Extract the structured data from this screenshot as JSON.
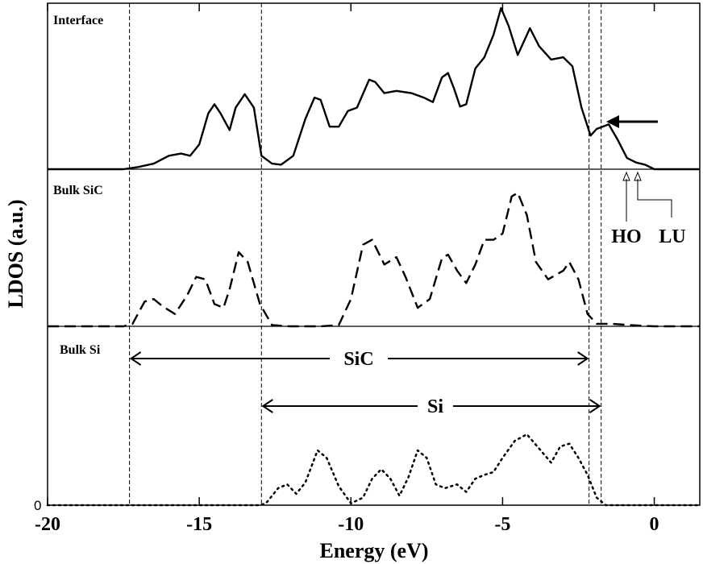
{
  "chart_data": {
    "type": "line",
    "xlabel": "Energy (eV)",
    "ylabel": "LDOS (a.u.)",
    "xlim": [
      -20,
      1.5
    ],
    "xticks": [
      -20,
      -15,
      -10,
      -5,
      0
    ],
    "xtick_labels": [
      "-20",
      "-15",
      "-10",
      "-5",
      "0"
    ],
    "ytick_label": "0",
    "grid": false,
    "panels": [
      {
        "name": "Interface",
        "line_style": "solid",
        "points": [
          [
            -20,
            0
          ],
          [
            -17.5,
            0.0
          ],
          [
            -17,
            0.02
          ],
          [
            -16.5,
            0.05
          ],
          [
            -16,
            0.12
          ],
          [
            -15.6,
            0.14
          ],
          [
            -15.3,
            0.12
          ],
          [
            -15.0,
            0.22
          ],
          [
            -14.7,
            0.5
          ],
          [
            -14.5,
            0.58
          ],
          [
            -14.3,
            0.5
          ],
          [
            -14.0,
            0.35
          ],
          [
            -13.8,
            0.55
          ],
          [
            -13.5,
            0.67
          ],
          [
            -13.2,
            0.55
          ],
          [
            -12.95,
            0.12
          ],
          [
            -12.6,
            0.05
          ],
          [
            -12.3,
            0.04
          ],
          [
            -11.9,
            0.12
          ],
          [
            -11.5,
            0.45
          ],
          [
            -11.2,
            0.64
          ],
          [
            -11.0,
            0.62
          ],
          [
            -10.7,
            0.38
          ],
          [
            -10.4,
            0.38
          ],
          [
            -10.1,
            0.52
          ],
          [
            -9.8,
            0.55
          ],
          [
            -9.4,
            0.8
          ],
          [
            -9.2,
            0.78
          ],
          [
            -8.9,
            0.68
          ],
          [
            -8.5,
            0.7
          ],
          [
            -8.0,
            0.68
          ],
          [
            -7.6,
            0.64
          ],
          [
            -7.3,
            0.6
          ],
          [
            -7.0,
            0.82
          ],
          [
            -6.8,
            0.86
          ],
          [
            -6.6,
            0.72
          ],
          [
            -6.4,
            0.56
          ],
          [
            -6.2,
            0.58
          ],
          [
            -5.9,
            0.9
          ],
          [
            -5.6,
            1.0
          ],
          [
            -5.3,
            1.2
          ],
          [
            -5.05,
            1.44
          ],
          [
            -4.8,
            1.28
          ],
          [
            -4.5,
            1.02
          ],
          [
            -4.1,
            1.26
          ],
          [
            -3.8,
            1.1
          ],
          [
            -3.4,
            0.98
          ],
          [
            -3.0,
            1.0
          ],
          [
            -2.7,
            0.92
          ],
          [
            -2.4,
            0.55
          ],
          [
            -2.1,
            0.3
          ],
          [
            -1.9,
            0.36
          ],
          [
            -1.5,
            0.4
          ],
          [
            -1.2,
            0.26
          ],
          [
            -0.9,
            0.1
          ],
          [
            -0.6,
            0.06
          ],
          [
            -0.3,
            0.04
          ],
          [
            0,
            0.0
          ],
          [
            1.5,
            0.0
          ]
        ],
        "annotations": [
          "HO",
          "LU"
        ]
      },
      {
        "name": "Bulk SiC",
        "line_style": "dashed",
        "points": [
          [
            -20,
            0
          ],
          [
            -17.5,
            0.0
          ],
          [
            -17.2,
            0.02
          ],
          [
            -16.8,
            0.2
          ],
          [
            -16.5,
            0.22
          ],
          [
            -16.2,
            0.16
          ],
          [
            -15.8,
            0.1
          ],
          [
            -15.4,
            0.25
          ],
          [
            -15.1,
            0.4
          ],
          [
            -14.8,
            0.38
          ],
          [
            -14.5,
            0.18
          ],
          [
            -14.2,
            0.15
          ],
          [
            -14.0,
            0.3
          ],
          [
            -13.7,
            0.6
          ],
          [
            -13.4,
            0.52
          ],
          [
            -13.0,
            0.18
          ],
          [
            -12.6,
            0.01
          ],
          [
            -12,
            0.0
          ],
          [
            -11,
            0.0
          ],
          [
            -10.4,
            0.01
          ],
          [
            -10.0,
            0.22
          ],
          [
            -9.6,
            0.66
          ],
          [
            -9.3,
            0.7
          ],
          [
            -8.9,
            0.5
          ],
          [
            -8.5,
            0.56
          ],
          [
            -8.2,
            0.4
          ],
          [
            -7.8,
            0.15
          ],
          [
            -7.4,
            0.22
          ],
          [
            -7.0,
            0.55
          ],
          [
            -6.8,
            0.58
          ],
          [
            -6.5,
            0.45
          ],
          [
            -6.2,
            0.35
          ],
          [
            -5.9,
            0.5
          ],
          [
            -5.6,
            0.7
          ],
          [
            -5.3,
            0.7
          ],
          [
            -5.0,
            0.75
          ],
          [
            -4.7,
            1.05
          ],
          [
            -4.5,
            1.08
          ],
          [
            -4.2,
            0.9
          ],
          [
            -3.9,
            0.52
          ],
          [
            -3.5,
            0.38
          ],
          [
            -3.0,
            0.45
          ],
          [
            -2.8,
            0.52
          ],
          [
            -2.5,
            0.38
          ],
          [
            -2.2,
            0.1
          ],
          [
            -1.9,
            0.02
          ],
          [
            -1.4,
            0.02
          ],
          [
            -0.8,
            0.01
          ],
          [
            0,
            0.0
          ],
          [
            1.5,
            0.0
          ]
        ]
      },
      {
        "name": "Bulk Si",
        "line_style": "dotted",
        "points": [
          [
            -20,
            0
          ],
          [
            -13,
            0.0
          ],
          [
            -12.8,
            0.02
          ],
          [
            -12.4,
            0.18
          ],
          [
            -12.1,
            0.22
          ],
          [
            -11.8,
            0.12
          ],
          [
            -11.5,
            0.24
          ],
          [
            -11.1,
            0.58
          ],
          [
            -10.8,
            0.5
          ],
          [
            -10.4,
            0.2
          ],
          [
            -10.0,
            0.02
          ],
          [
            -9.6,
            0.08
          ],
          [
            -9.3,
            0.28
          ],
          [
            -9.0,
            0.38
          ],
          [
            -8.7,
            0.28
          ],
          [
            -8.4,
            0.1
          ],
          [
            -8.1,
            0.3
          ],
          [
            -7.8,
            0.58
          ],
          [
            -7.5,
            0.5
          ],
          [
            -7.2,
            0.22
          ],
          [
            -6.9,
            0.18
          ],
          [
            -6.5,
            0.22
          ],
          [
            -6.2,
            0.14
          ],
          [
            -5.9,
            0.28
          ],
          [
            -5.6,
            0.32
          ],
          [
            -5.3,
            0.35
          ],
          [
            -5.0,
            0.5
          ],
          [
            -4.6,
            0.68
          ],
          [
            -4.2,
            0.75
          ],
          [
            -3.8,
            0.6
          ],
          [
            -3.4,
            0.45
          ],
          [
            -3.1,
            0.62
          ],
          [
            -2.8,
            0.65
          ],
          [
            -2.5,
            0.5
          ],
          [
            -2.2,
            0.32
          ],
          [
            -1.9,
            0.08
          ],
          [
            -1.6,
            0.0
          ],
          [
            -1,
            0.0
          ],
          [
            0,
            0.0
          ],
          [
            1.5,
            0.0
          ]
        ]
      }
    ],
    "vlines": [
      -17.3,
      -12.95,
      -2.15,
      -1.75
    ],
    "gap_arrows": [
      {
        "label": "SiC",
        "from": -17.3,
        "to": -2.15
      },
      {
        "label": "Si",
        "from": -12.95,
        "to": -1.75
      }
    ],
    "ho_lu_labels": {
      "ho": "HO",
      "lu": "LU"
    }
  }
}
